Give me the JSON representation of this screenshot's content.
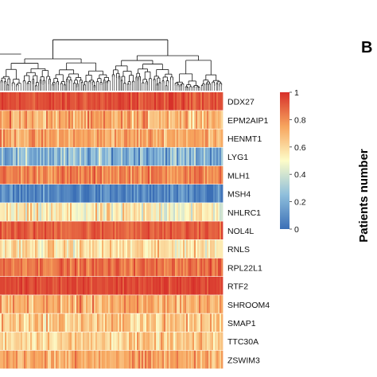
{
  "figure": {
    "panel_label": "B",
    "right_axis_title": "Patients number"
  },
  "colors": {
    "scale_low": "#3b6fb6",
    "scale_mid": "#fdfcc8",
    "scale_high": "#d7302a",
    "dendrogram": "#111111"
  },
  "chart_data": {
    "type": "heatmap",
    "title": "",
    "xlabel": "",
    "ylabel": "",
    "rows": [
      "DDX27",
      "EPM2AIP1",
      "HENMT1",
      "LYG1",
      "MLH1",
      "MSH4",
      "NHLRC1",
      "NOL4L",
      "RNLS",
      "RPL22L1",
      "RTF2",
      "SHROOM4",
      "SMAP1",
      "TTC30A",
      "ZSWIM3"
    ],
    "row_mean_values": [
      0.93,
      0.72,
      0.74,
      0.22,
      0.82,
      0.06,
      0.52,
      0.9,
      0.58,
      0.86,
      0.95,
      0.72,
      0.65,
      0.63,
      0.74
    ],
    "row_spread": [
      0.05,
      0.1,
      0.08,
      0.12,
      0.07,
      0.08,
      0.12,
      0.05,
      0.1,
      0.06,
      0.04,
      0.1,
      0.1,
      0.09,
      0.08
    ],
    "colorbar": {
      "range": [
        0,
        1
      ],
      "ticks": [
        "1",
        "0.8",
        "0.6",
        "0.4",
        "0.2",
        "0"
      ]
    },
    "dendrogram": "column clustering tree above heatmap",
    "legend_position": "right"
  }
}
